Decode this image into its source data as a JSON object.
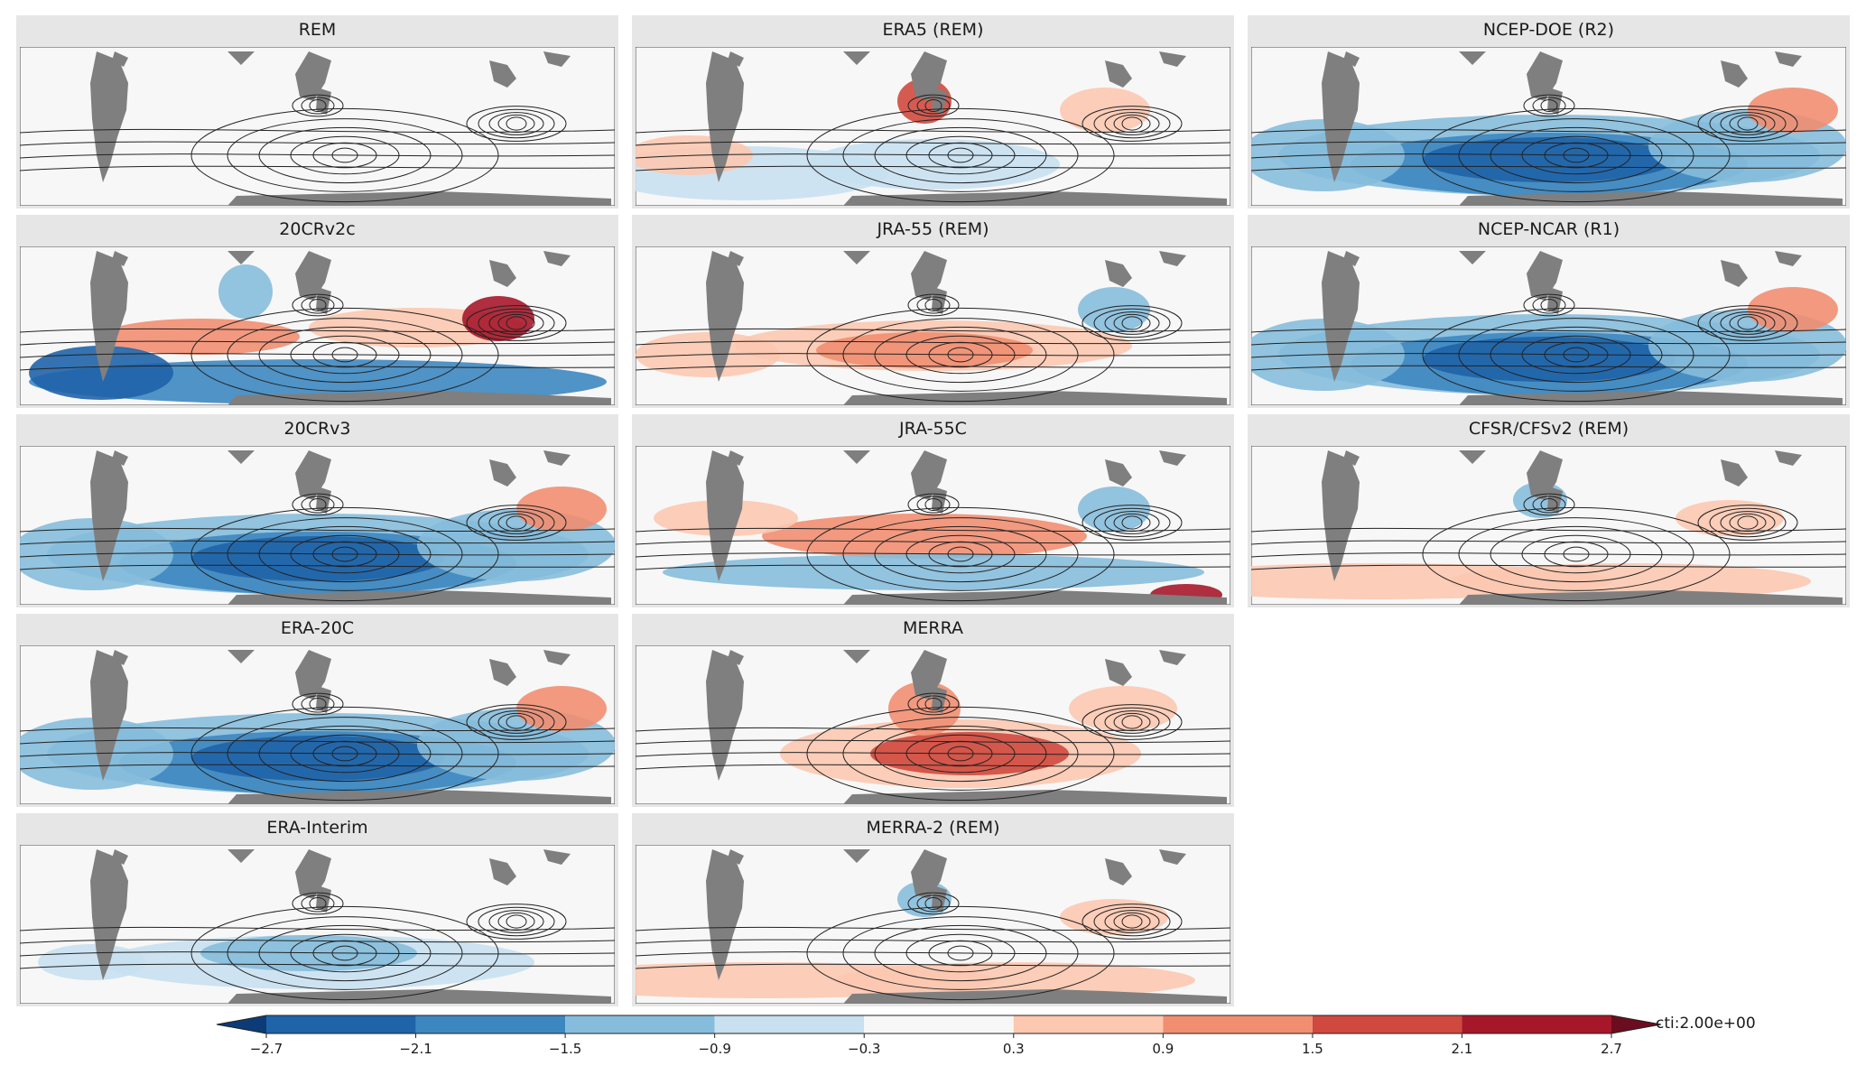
{
  "panels": [
    {
      "title": "REM",
      "col": 0,
      "row": 0,
      "anomaly": "none"
    },
    {
      "title": "ERA5 (REM)",
      "col": 1,
      "row": 0,
      "anomaly": "mixed-weak"
    },
    {
      "title": "NCEP-DOE (R2)",
      "col": 2,
      "row": 0,
      "anomaly": "blue-strong"
    },
    {
      "title": "20CRv2c",
      "col": 0,
      "row": 1,
      "anomaly": "blue-red-band"
    },
    {
      "title": "JRA-55 (REM)",
      "col": 1,
      "row": 1,
      "anomaly": "red-moderate"
    },
    {
      "title": "NCEP-NCAR (R1)",
      "col": 2,
      "row": 1,
      "anomaly": "blue-strong"
    },
    {
      "title": "20CRv3",
      "col": 0,
      "row": 2,
      "anomaly": "blue-strong"
    },
    {
      "title": "JRA-55C",
      "col": 1,
      "row": 2,
      "anomaly": "red-blue-mixed"
    },
    {
      "title": "CFSR/CFSv2 (REM)",
      "col": 2,
      "row": 2,
      "anomaly": "red-weak"
    },
    {
      "title": "ERA-20C",
      "col": 0,
      "row": 3,
      "anomaly": "blue-strong"
    },
    {
      "title": "MERRA",
      "col": 1,
      "row": 3,
      "anomaly": "red-strong"
    },
    {
      "title": "ERA-Interim",
      "col": 0,
      "row": 4,
      "anomaly": "blue-weak"
    },
    {
      "title": "MERRA-2 (REM)",
      "col": 1,
      "row": 4,
      "anomaly": "red-weak"
    }
  ],
  "colorbar": {
    "ticks": [
      "−2.7",
      "−2.1",
      "−1.5",
      "−0.9",
      "−0.3",
      "0.3",
      "0.9",
      "1.5",
      "2.1",
      "2.7"
    ],
    "colors": [
      "#0d3b78",
      "#1f63a8",
      "#3d87c0",
      "#86bcdc",
      "#c8e0ef",
      "#f7f7f7",
      "#fcc8b0",
      "#f18e71",
      "#d0493e",
      "#a6172a",
      "#6b0d1e"
    ],
    "label": "cti:2.00e+00"
  }
}
